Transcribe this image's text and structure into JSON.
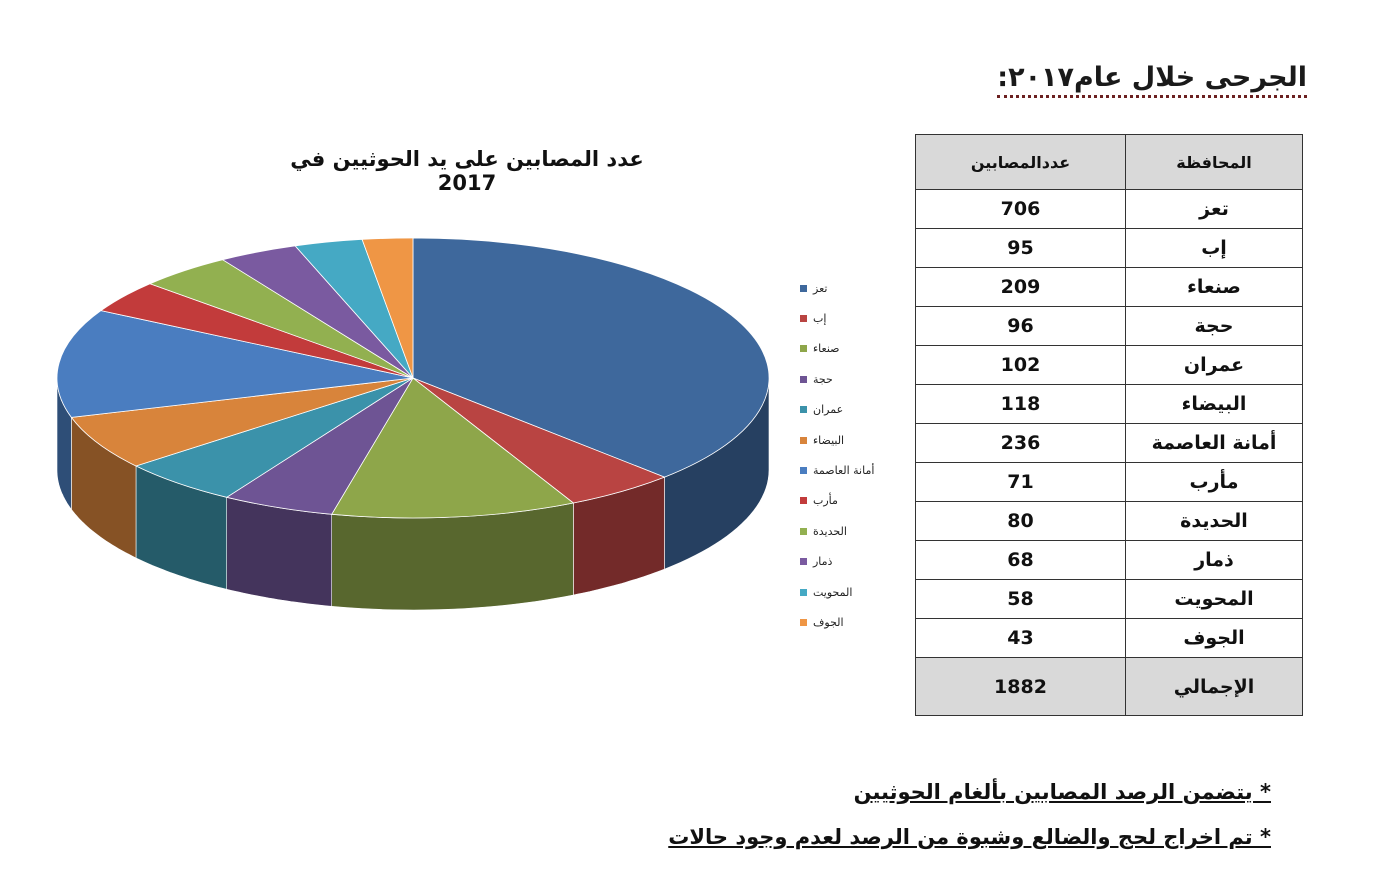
{
  "heading": "الجرحى خلال عام٢٠١٧:",
  "table": {
    "headers": {
      "governorate": "المحافظة",
      "count": "عددالمصابين"
    },
    "rows": [
      {
        "governorate": "تعز",
        "count": "706"
      },
      {
        "governorate": "إب",
        "count": "95"
      },
      {
        "governorate": "صنعاء",
        "count": "209"
      },
      {
        "governorate": "حجة",
        "count": "96"
      },
      {
        "governorate": "عمران",
        "count": "102"
      },
      {
        "governorate": "البيضاء",
        "count": "118"
      },
      {
        "governorate": "أمانة العاصمة",
        "count": "236"
      },
      {
        "governorate": "مأرب",
        "count": "71"
      },
      {
        "governorate": "الحديدة",
        "count": "80"
      },
      {
        "governorate": "ذمار",
        "count": "68"
      },
      {
        "governorate": "المحويت",
        "count": "58"
      },
      {
        "governorate": "الجوف",
        "count": "43"
      }
    ],
    "total": {
      "label": "الإجمالي",
      "value": "1882"
    }
  },
  "chart_data": {
    "type": "pie",
    "title": "عدد المصابين على يد الحوثيين في 2017",
    "categories": [
      "تعز",
      "إب",
      "صنعاء",
      "حجة",
      "عمران",
      "البيضاء",
      "أمانة العاصمة",
      "مأرب",
      "الحديدة",
      "ذمار",
      "المحويت",
      "الجوف"
    ],
    "values": [
      706,
      95,
      209,
      96,
      102,
      118,
      236,
      71,
      80,
      68,
      58,
      43
    ],
    "colors": [
      "#3e689c",
      "#b94442",
      "#8ea64a",
      "#6e5494",
      "#3b92aa",
      "#d8843b",
      "#4a7dc0",
      "#c23b3b",
      "#92b050",
      "#7a5aa0",
      "#45a9c4",
      "#ef9645"
    ],
    "legend_position": "right",
    "style": "3d"
  },
  "notes": [
    "* يتضمن الرصد المصابين بألغام الحوثيين",
    "* تم اخراج لحج والضالع وشبوة من الرصد لعدم وجود حالات"
  ]
}
